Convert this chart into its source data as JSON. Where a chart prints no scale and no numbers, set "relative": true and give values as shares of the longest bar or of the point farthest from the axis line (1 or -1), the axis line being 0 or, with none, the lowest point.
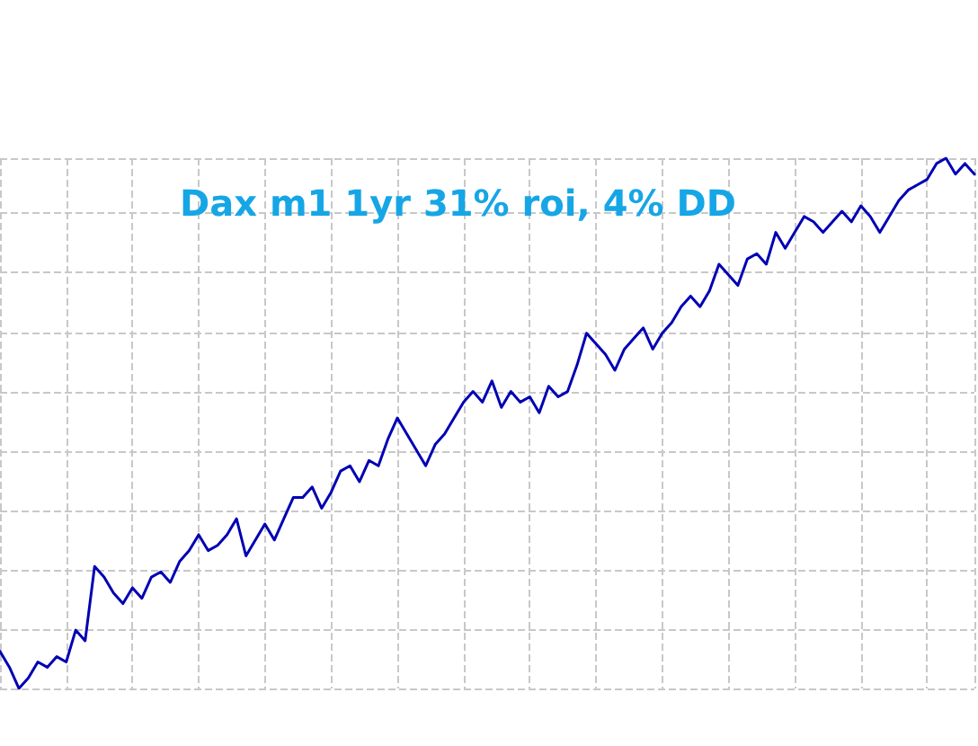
{
  "chart_data": {
    "type": "line",
    "title": "Dax m1 1yr 31% roi, 4% DD",
    "relative": true,
    "grid": true,
    "line_style": "solid",
    "categories": [
      null,
      null,
      null,
      null,
      null,
      null,
      null,
      null,
      null,
      null,
      null,
      null,
      null,
      null,
      null,
      null,
      null,
      null,
      null,
      null,
      null,
      null,
      null,
      null,
      null,
      null,
      null,
      null,
      null,
      null,
      null,
      null,
      null,
      null,
      null,
      null,
      null,
      null,
      null,
      null,
      null,
      null,
      null,
      null,
      null,
      null,
      null,
      null,
      null,
      null,
      null,
      null,
      null,
      null,
      null,
      null,
      null,
      null,
      null,
      null,
      null,
      null,
      null,
      null,
      null,
      null,
      null,
      null,
      null,
      null,
      null,
      null,
      null,
      null,
      null,
      null,
      null,
      null,
      null,
      null,
      null,
      null,
      null,
      null,
      null,
      null,
      null,
      null,
      null,
      null,
      null,
      null,
      null,
      null,
      null,
      null,
      null,
      null,
      null,
      null,
      null,
      null,
      null,
      null
    ],
    "series": [
      {
        "color": "#0000b4",
        "values": [
          0.07,
          0.04,
          0,
          0.02,
          0.05,
          0.04,
          0.06,
          0.05,
          0.11,
          0.09,
          0.23,
          0.21,
          0.18,
          0.16,
          0.19,
          0.17,
          0.21,
          0.22,
          0.2,
          0.24,
          0.26,
          0.29,
          0.26,
          0.27,
          0.29,
          0.32,
          0.25,
          0.28,
          0.31,
          0.28,
          0.32,
          0.36,
          0.36,
          0.38,
          0.34,
          0.37,
          0.41,
          0.42,
          0.39,
          0.43,
          0.42,
          0.47,
          0.51,
          0.48,
          0.45,
          0.42,
          0.46,
          0.48,
          0.51,
          0.54,
          0.56,
          0.54,
          0.58,
          0.53,
          0.56,
          0.54,
          0.55,
          0.52,
          0.57,
          0.55,
          0.56,
          0.61,
          0.67,
          0.65,
          0.63,
          0.6,
          0.64,
          0.66,
          0.68,
          0.64,
          0.67,
          0.69,
          0.72,
          0.74,
          0.72,
          0.75,
          0.8,
          0.78,
          0.76,
          0.81,
          0.82,
          0.8,
          0.86,
          0.83,
          0.86,
          0.89,
          0.88,
          0.86,
          0.88,
          0.9,
          0.88,
          0.91,
          0.89,
          0.86,
          0.89,
          0.92,
          0.94,
          0.95,
          0.96,
          0.99,
          1,
          0.97,
          0.99,
          0.97
        ]
      }
    ]
  }
}
